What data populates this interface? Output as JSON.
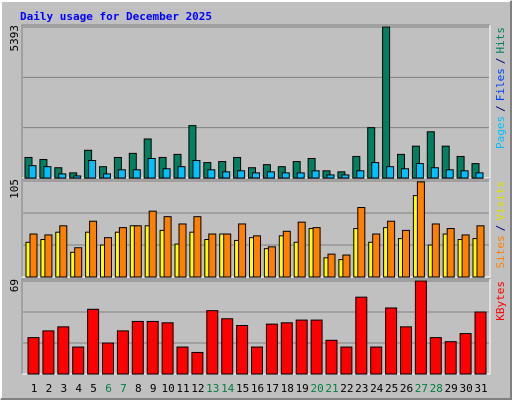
{
  "title": "Daily usage for December 2025",
  "categories": [
    "1",
    "2",
    "3",
    "4",
    "5",
    "6",
    "7",
    "8",
    "9",
    "10",
    "11",
    "12",
    "13",
    "14",
    "15",
    "16",
    "17",
    "18",
    "19",
    "20",
    "21",
    "22",
    "23",
    "24",
    "25",
    "26",
    "27",
    "28",
    "29",
    "30",
    "31"
  ],
  "weekends": [
    "6",
    "7",
    "13",
    "14",
    "20",
    "21",
    "27",
    "28"
  ],
  "weekday_color": "#000000",
  "weekend_color": "#008040",
  "chart_data": [
    {
      "type": "bar",
      "ylim": [
        0,
        5393
      ],
      "yticks": [
        5393
      ],
      "right_label": [
        {
          "text": "Pages",
          "color": "#00C0FF"
        },
        {
          "text": "/",
          "color": "#000080"
        },
        {
          "text": "Files",
          "color": "#0040FF"
        },
        {
          "text": "/",
          "color": "#000080"
        },
        {
          "text": "Hits",
          "color": "#008060"
        }
      ],
      "series": [
        {
          "color": "#008060",
          "values": [
            734,
            660,
            367,
            183,
            990,
            404,
            734,
            880,
            1394,
            734,
            844,
            1871,
            550,
            587,
            734,
            367,
            477,
            404,
            587,
            697,
            257,
            220,
            770,
            1798,
            5393,
            844,
            1137,
            1651,
            1137,
            770,
            514
          ]
        },
        {
          "color": "#00C0FF",
          "values": [
            440,
            404,
            147,
            73,
            624,
            147,
            293,
            293,
            697,
            330,
            404,
            624,
            293,
            220,
            257,
            183,
            220,
            183,
            183,
            257,
            110,
            110,
            257,
            550,
            404,
            330,
            514,
            367,
            293,
            257,
            183
          ]
        }
      ]
    },
    {
      "type": "bar",
      "ylim": [
        0,
        105
      ],
      "yticks": [
        105
      ],
      "right_label": [
        {
          "text": "Sites",
          "color": "#FF8000"
        },
        {
          "text": "/",
          "color": "#000080"
        },
        {
          "text": "Visits",
          "color": "#E0E000"
        }
      ],
      "series": [
        {
          "color": "#FFFF00",
          "values": [
            38,
            41,
            49,
            27,
            49,
            35,
            49,
            56,
            56,
            51,
            36,
            49,
            41,
            47,
            40,
            43,
            31,
            45,
            38,
            53,
            21,
            19,
            53,
            38,
            54,
            42,
            89,
            35,
            47,
            41,
            42
          ]
        },
        {
          "color": "#FF8000",
          "values": [
            47,
            46,
            56,
            32,
            61,
            43,
            54,
            56,
            72,
            66,
            58,
            66,
            47,
            47,
            58,
            45,
            33,
            50,
            60,
            54,
            25,
            24,
            76,
            47,
            61,
            51,
            104,
            58,
            53,
            46,
            56
          ]
        }
      ]
    },
    {
      "type": "bar",
      "ylim": [
        0,
        69
      ],
      "yticks": [
        69
      ],
      "right_label": [
        {
          "text": "KBytes",
          "color": "#FF0000"
        }
      ],
      "series": [
        {
          "color": "#FF0000",
          "values": [
            27,
            32,
            35,
            20,
            48,
            23,
            32,
            39,
            39,
            38,
            20,
            16,
            47,
            41,
            36,
            20,
            37,
            38,
            40,
            40,
            25,
            20,
            57,
            20,
            49,
            35,
            69,
            27,
            24,
            30,
            46
          ]
        }
      ]
    }
  ]
}
